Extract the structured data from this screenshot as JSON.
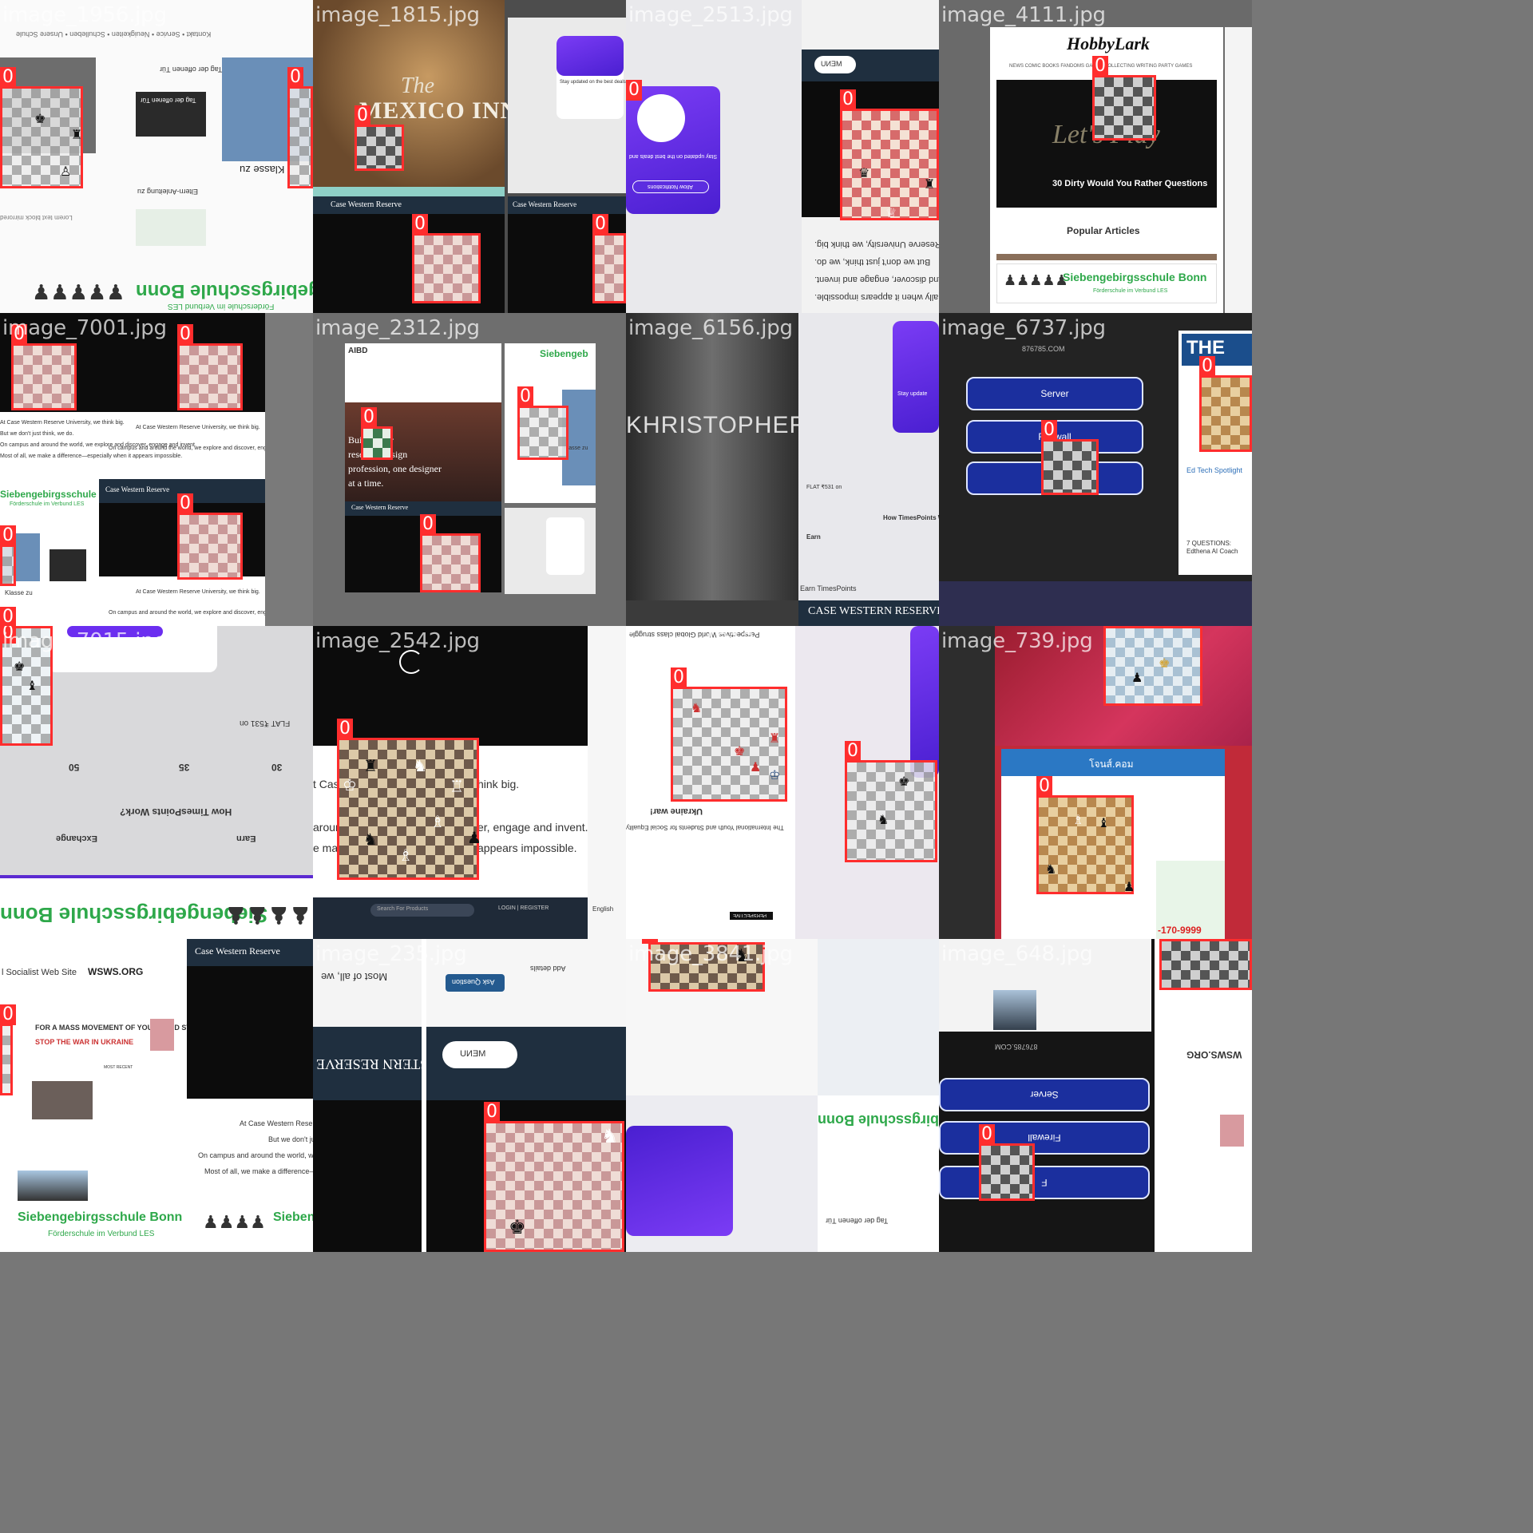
{
  "mosaic": {
    "tiles": [
      {
        "filename": "image_1956.jpg"
      },
      {
        "filename": "image_1815.jpg"
      },
      {
        "filename": "image_2513.jpg"
      },
      {
        "filename": "image_4111.jpg"
      },
      {
        "filename": "image_7001.jpg"
      },
      {
        "filename": "image_2312.jpg"
      },
      {
        "filename": "image_6156.jpg"
      },
      {
        "filename": "image_6737.jpg"
      },
      {
        "filename": "image_7015.jpg"
      },
      {
        "filename": "image_2542.jpg"
      },
      {
        "filename": "image_4812.jpg"
      },
      {
        "filename": "image_739.jpg"
      },
      {
        "filename": "image_5586.jpg"
      },
      {
        "filename": "image_235.jpg"
      },
      {
        "filename": "image_3841.jpg"
      },
      {
        "filename": "image_648.jpg"
      }
    ],
    "bbox_label": "0",
    "bbox_color": "#ff2d2d"
  },
  "texts": {
    "mexico_inn": "MEXICO INN",
    "the": "The",
    "case_western": "CASE WESTERN RESERVE",
    "case_western_small": "Case Western Reserve",
    "hobbylark": "HobbyLark",
    "hobbylark_nav": "NEWS  COMIC BOOKS  FANDOMS  GAMES  COLLECTING  WRITING  PARTY GAMES",
    "dirty_questions": "30 Dirty Would You Rather Questions",
    "popular_articles": "Popular Articles",
    "siebengebirgsschule": "Siebengebirgsschule Bonn",
    "foerderschule": "Förderschule im Verbund LES",
    "klasse_zu": "Klasse zu",
    "tag_der_offenen": "Tag der offenen Tür",
    "cwr_think_big": "At Case Western Reserve University, we think big.",
    "cwr_dont_just": "But we don't just think, we do.",
    "cwr_campus": "On campus and around the world, we explore and discover, engage and invent.",
    "cwr_most": "Most of all, we make a difference—especially when it appears impossible.",
    "build_better": "Build better",
    "research_design": "research design",
    "profession": "profession, one designer",
    "at_a_time": "at a time.",
    "server": "Server",
    "firewall": "Firewall",
    "f": "F",
    "site_876785": "876785.COM",
    "the_journal": "THE JOURNAL",
    "ed_tech": "Ed Tech Spotlight",
    "seven_questions": "7 QUESTIONS:",
    "edthena": "Edthena AI Coach",
    "stay_updated": "Stay updated on the best deals and",
    "allow_notifications": "Allow Notifications",
    "how_timespoints": "How TimesPoints Work?",
    "earn": "Earn",
    "exchange": "Exchange",
    "earn_timespoints": "Earn TimesPoints",
    "think_big": "hink big.",
    "engage_invent": "er, engage and invent.",
    "appears_impossible": "appears impossible.",
    "search_products": "Search For Products",
    "login_register": "LOGIN | REGISTER",
    "english": "English",
    "ukraine_war": "Ukraine war!",
    "wsws": "WSWS.ORG",
    "socialist_web_site": "l Socialist Web Site",
    "mass_movement": "FOR A MASS MOVEMENT OF YOUTH AND STUDENTS TO",
    "stop_war": "STOP THE WAR IN UKRAINE",
    "menu": "MENU",
    "ask_question": "Ask Question",
    "add_details": "Add details",
    "most_of_all": "Most of all, we",
    "lets_play": "Let's Play",
    "khristopher": "KHRISTOPHER",
    "thai_site": "โจนส์.คอม",
    "flat_off": "FLAT ₹531 on",
    "plus_30": "30",
    "plus_35": "35",
    "plus_50": "50",
    "wsws_most_recent": "MOST RECENT",
    "perspective": "PERSPECTIVE"
  }
}
